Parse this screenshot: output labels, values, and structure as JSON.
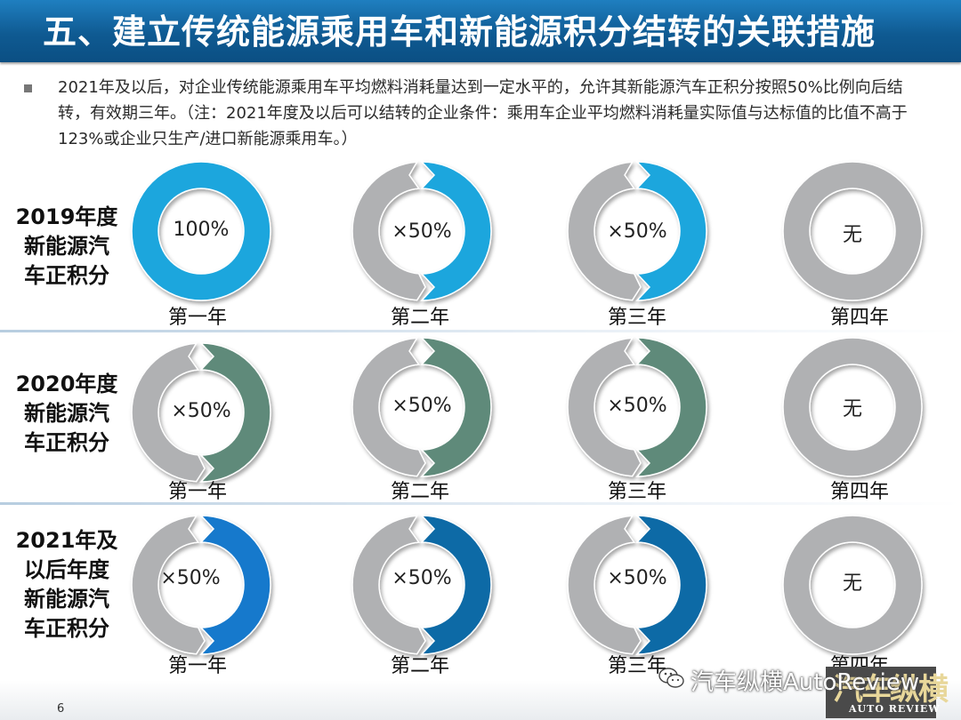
{
  "header": {
    "title": "五、建立传统能源乘用车和新能源积分结转的关联措施"
  },
  "note": {
    "text": "2021年及以后，对企业传统能源乘用车平均燃料消耗量达到一定水平的，允许其新能源汽车正积分按照50%比例向后结转，有效期三年。（注：2021年度及以后可以结转的企业条件：乘用车企业平均燃料消耗量实际值与达标值的比值不高于123%或企业只生产/进口新能源乘用车。）"
  },
  "colors": {
    "gray": "#b0b1b3",
    "cyan": "#1aa6dd",
    "teal": "#5f8a7a",
    "blue": "#1479cc",
    "navy": "#0e6aa6"
  },
  "rows": [
    {
      "label_lines": [
        "2019年度",
        "新能源汽",
        "车正积分"
      ],
      "cells": [
        {
          "ring_label": "100%",
          "year_label": "第一年",
          "type": "full",
          "fraction": 1.0,
          "color": "cyan"
        },
        {
          "ring_label": "×50%",
          "year_label": "第二年",
          "type": "half",
          "fraction": 0.5,
          "color": "cyan"
        },
        {
          "ring_label": "×50%",
          "year_label": "第三年",
          "type": "half",
          "fraction": 0.5,
          "color": "cyan"
        },
        {
          "ring_label": "无",
          "year_label": "第四年",
          "type": "none",
          "fraction": 0,
          "color": "gray"
        }
      ]
    },
    {
      "label_lines": [
        "2020年度",
        "新能源汽",
        "车正积分"
      ],
      "cells": [
        {
          "ring_label": "×50%",
          "year_label": "第一年",
          "type": "half",
          "fraction": 0.5,
          "color": "teal"
        },
        {
          "ring_label": "×50%",
          "year_label": "第二年",
          "type": "half",
          "fraction": 0.5,
          "color": "teal"
        },
        {
          "ring_label": "×50%",
          "year_label": "第三年",
          "type": "half",
          "fraction": 0.5,
          "color": "teal"
        },
        {
          "ring_label": "无",
          "year_label": "第四年",
          "type": "none",
          "fraction": 0,
          "color": "gray"
        }
      ]
    },
    {
      "label_lines": [
        "2021年及",
        "以后年度",
        "新能源汽",
        "车正积分"
      ],
      "cells": [
        {
          "ring_label": "×50%",
          "year_label": "第一年",
          "type": "half",
          "fraction": 0.5,
          "color": "blue"
        },
        {
          "ring_label": "×50%",
          "year_label": "第二年",
          "type": "half",
          "fraction": 0.5,
          "color": "navy"
        },
        {
          "ring_label": "×50%",
          "year_label": "第三年",
          "type": "half",
          "fraction": 0.5,
          "color": "navy"
        },
        {
          "ring_label": "无",
          "year_label": "第四年",
          "type": "none",
          "fraction": 0,
          "color": "gray"
        }
      ]
    }
  ],
  "footer": {
    "page_number": "6",
    "watermark": "汽车纵横AutoReview",
    "logo_text": "汽车纵横",
    "logo_subtitle": "AUTO REVIEW",
    "wechat_icon": "wechat-icon"
  }
}
